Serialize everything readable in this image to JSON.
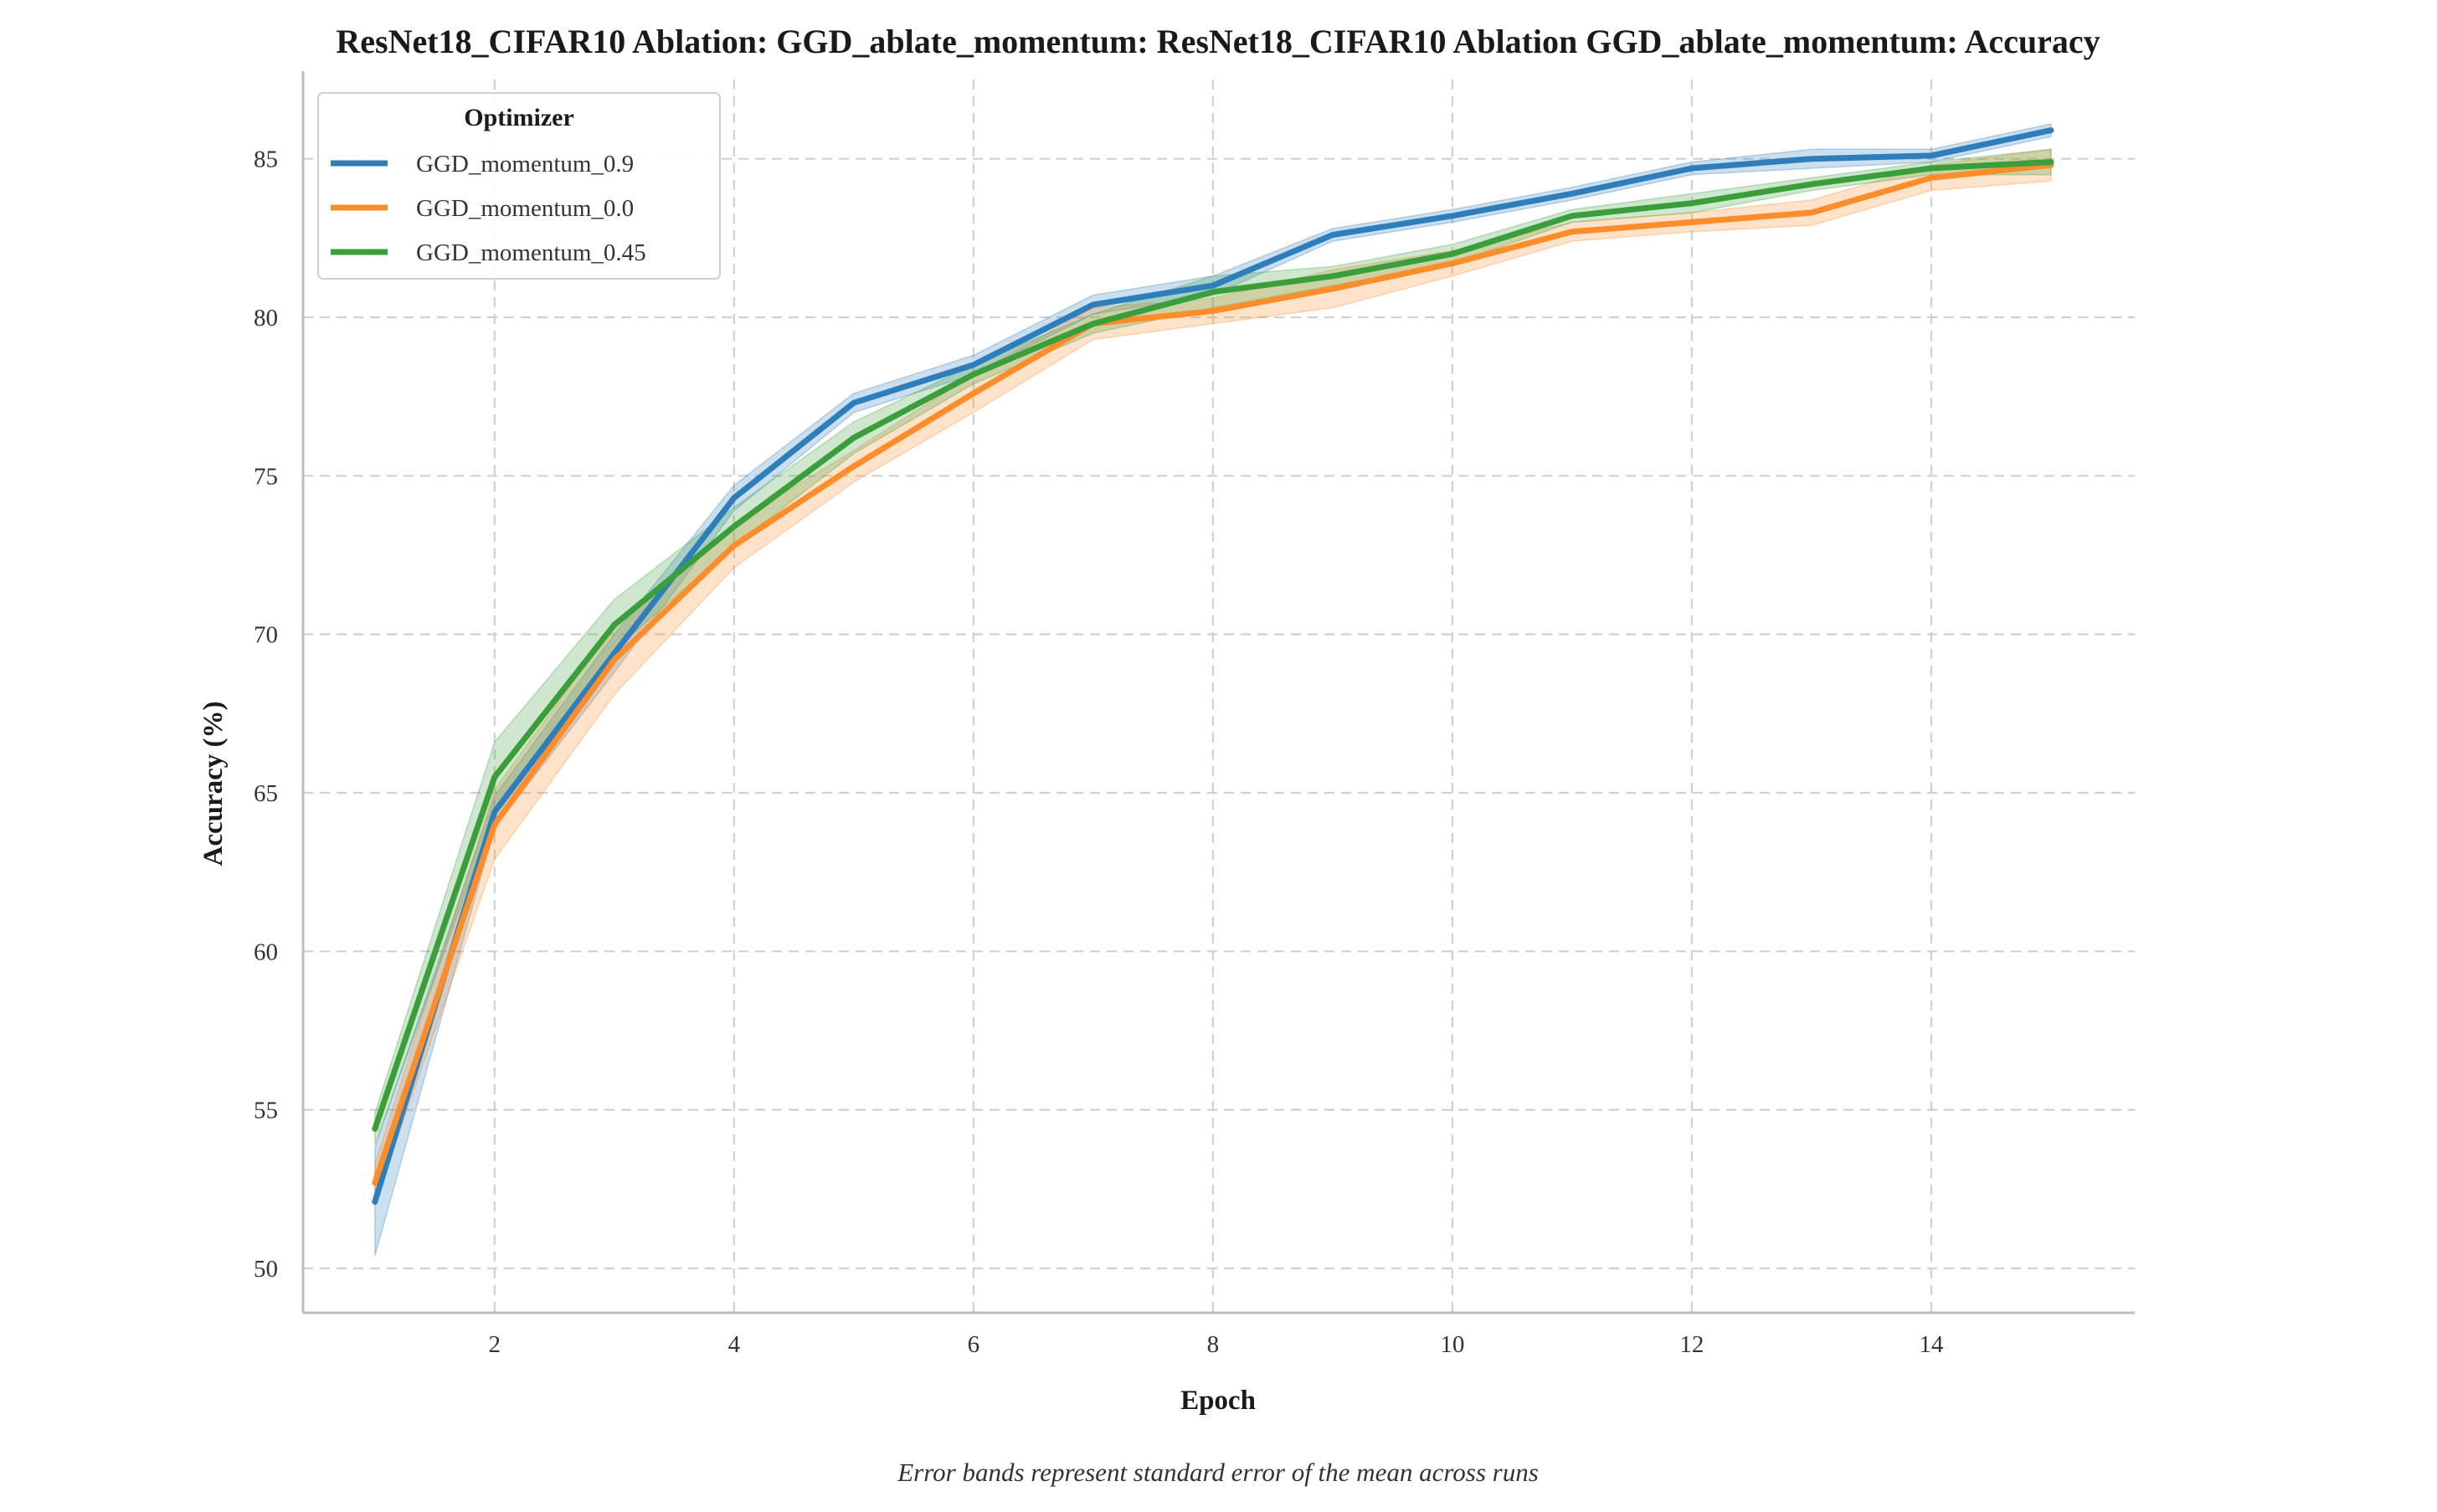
{
  "chart_data": {
    "type": "line",
    "title": "ResNet18_CIFAR10 Ablation: GGD_ablate_momentum: ResNet18_CIFAR10 Ablation GGD_ablate_momentum: Accuracy",
    "xlabel": "Epoch",
    "ylabel": "Accuracy (%)",
    "caption": "Error bands represent standard error of the mean across runs",
    "xlim": [
      0.4,
      15.7
    ],
    "ylim": [
      48.6,
      87.5
    ],
    "xticks": [
      2,
      4,
      6,
      8,
      10,
      12,
      14
    ],
    "yticks": [
      50,
      55,
      60,
      65,
      70,
      75,
      80,
      85
    ],
    "grid": true,
    "legend": {
      "title": "Optimizer",
      "placement": "top-left"
    },
    "x": [
      1,
      2,
      3,
      4,
      5,
      6,
      7,
      8,
      9,
      10,
      11,
      12,
      13,
      14,
      15
    ],
    "series": [
      {
        "name": "GGD_momentum_0.9",
        "color": "#2f7ebc",
        "values": [
          52.1,
          64.4,
          69.4,
          74.3,
          77.3,
          78.5,
          80.4,
          81.0,
          82.6,
          83.2,
          83.9,
          84.7,
          85.0,
          85.1,
          85.9
        ],
        "err": [
          1.7,
          0.5,
          0.6,
          0.4,
          0.3,
          0.3,
          0.3,
          0.3,
          0.2,
          0.2,
          0.2,
          0.2,
          0.3,
          0.2,
          0.2
        ]
      },
      {
        "name": "GGD_momentum_0.0",
        "color": "#fd8c2a",
        "values": [
          52.7,
          64.0,
          69.2,
          72.8,
          75.3,
          77.6,
          79.8,
          80.2,
          80.9,
          81.7,
          82.7,
          83.0,
          83.3,
          84.4,
          84.8
        ],
        "err": [
          0.6,
          1.1,
          1.1,
          0.7,
          0.5,
          0.6,
          0.5,
          0.4,
          0.6,
          0.4,
          0.3,
          0.3,
          0.4,
          0.4,
          0.5
        ]
      },
      {
        "name": "GGD_momentum_0.45",
        "color": "#3a9e3a",
        "values": [
          54.4,
          65.5,
          70.3,
          73.4,
          76.2,
          78.2,
          79.8,
          80.8,
          81.3,
          82.0,
          83.2,
          83.6,
          84.2,
          84.7,
          84.9
        ],
        "err": [
          0.5,
          1.1,
          0.8,
          0.6,
          0.5,
          0.3,
          0.3,
          0.5,
          0.3,
          0.3,
          0.2,
          0.3,
          0.2,
          0.2,
          0.4
        ]
      }
    ]
  }
}
